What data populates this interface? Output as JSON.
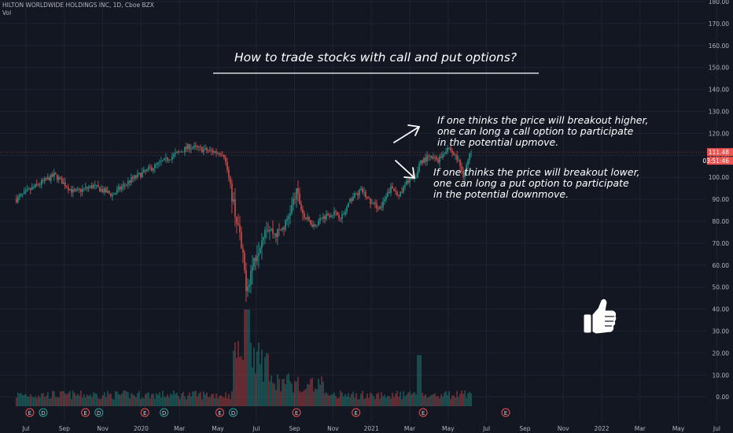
{
  "header": {
    "symbol_line": "HILTON WORLDWIDE HOLDINGS INC, 1D, Cboe BZX",
    "vol_label": "Vol"
  },
  "annotations": {
    "title": "How to trade stocks with call and put options?",
    "call_text": [
      "If one thinks the price will breakout higher,",
      "one can long a call option to participate",
      "in the potential upmove."
    ],
    "put_text": [
      "If one thinks the price will breakout lower,",
      "one can long a put option to participate",
      "in the potential downmove."
    ],
    "icons": [
      "arrow-up-right-icon",
      "arrow-down-right-icon",
      "thumbs-up-icon"
    ]
  },
  "chart_data": {
    "type": "candlestick",
    "x_tick_labels": [
      "Jul",
      "Sep",
      "Nov",
      "2020",
      "Mar",
      "May",
      "Jul",
      "Sep",
      "Nov",
      "2021",
      "Mar",
      "May",
      "Jul",
      "Sep",
      "Nov",
      "2022",
      "Mar",
      "May",
      "Jul"
    ],
    "y_tick_labels": [
      "180.00",
      "170.00",
      "160.00",
      "150.00",
      "140.00",
      "130.00",
      "120.00",
      "110.00",
      "100.00",
      "90.00",
      "80.00",
      "70.00",
      "60.00",
      "50.00",
      "40.00",
      "30.00",
      "20.00",
      "10.00",
      "0.00"
    ],
    "ylim": [
      -4,
      180
    ],
    "last_price_label": "111.48",
    "countdown_label": "03:51:46",
    "last_price": 111.48,
    "price_path": [
      {
        "m": 0,
        "close": 90
      },
      {
        "m": 1,
        "close": 96
      },
      {
        "m": 2,
        "close": 101
      },
      {
        "m": 3,
        "close": 93
      },
      {
        "m": 4,
        "close": 96
      },
      {
        "m": 5,
        "close": 92
      },
      {
        "m": 6,
        "close": 99
      },
      {
        "m": 7,
        "close": 104
      },
      {
        "m": 8,
        "close": 109
      },
      {
        "m": 9,
        "close": 114
      },
      {
        "m": 10,
        "close": 112
      },
      {
        "m": 10.8,
        "close": 111
      },
      {
        "m": 11,
        "close": 103
      },
      {
        "m": 11.6,
        "close": 75
      },
      {
        "m": 12,
        "close": 50
      },
      {
        "m": 12.5,
        "close": 66
      },
      {
        "m": 13,
        "close": 78
      },
      {
        "m": 13.5,
        "close": 74
      },
      {
        "m": 14,
        "close": 78
      },
      {
        "m": 14.6,
        "close": 93
      },
      {
        "m": 15,
        "close": 82
      },
      {
        "m": 15.5,
        "close": 78
      },
      {
        "m": 16,
        "close": 82
      },
      {
        "m": 16.5,
        "close": 84
      },
      {
        "m": 17,
        "close": 82
      },
      {
        "m": 17.5,
        "close": 91
      },
      {
        "m": 18,
        "close": 94
      },
      {
        "m": 18.5,
        "close": 88
      },
      {
        "m": 19,
        "close": 86
      },
      {
        "m": 19.5,
        "close": 95
      },
      {
        "m": 20,
        "close": 92
      },
      {
        "m": 20.5,
        "close": 100
      },
      {
        "m": 20.8,
        "close": 98
      },
      {
        "m": 21,
        "close": 107
      },
      {
        "m": 21.5,
        "close": 109
      },
      {
        "m": 22,
        "close": 108
      },
      {
        "m": 22.5,
        "close": 114
      },
      {
        "m": 23,
        "close": 108
      },
      {
        "m": 23.3,
        "close": 101
      },
      {
        "m": 23.7,
        "close": 112
      }
    ],
    "volume_ylim": [
      0,
      90
    ],
    "earnings_markers": [
      {
        "m": 0.7,
        "label": "E"
      },
      {
        "m": 1.4,
        "label": "D"
      },
      {
        "m": 3.6,
        "label": "E"
      },
      {
        "m": 4.3,
        "label": "D"
      },
      {
        "m": 6.7,
        "label": "E"
      },
      {
        "m": 7.7,
        "label": "D"
      },
      {
        "m": 10.6,
        "label": "E"
      },
      {
        "m": 11.3,
        "label": "D"
      },
      {
        "m": 14.6,
        "label": "E"
      },
      {
        "m": 17.7,
        "label": "E"
      },
      {
        "m": 21.2,
        "label": "E"
      },
      {
        "m": 25.5,
        "label": "E"
      }
    ],
    "legend": "none",
    "grid": true
  }
}
